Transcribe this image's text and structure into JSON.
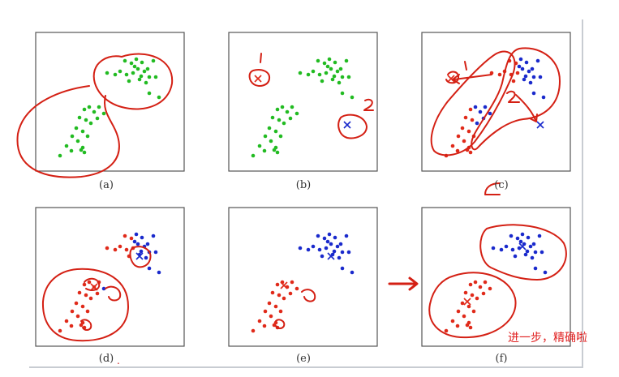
{
  "labels": {
    "a": "(a)",
    "b": "(b)",
    "c": "(c)",
    "d": "(d)",
    "e": "(e)",
    "f": "(f)"
  },
  "annotations": {
    "one": "1",
    "two": "2",
    "chinese_note": "进一步，精确啦",
    "tiny_mark": "."
  },
  "colors": {
    "green": "#22bb22",
    "red": "#e02a1a",
    "blue": "#1a2acc",
    "ink": "#d42014",
    "frame": "#555555"
  }
}
